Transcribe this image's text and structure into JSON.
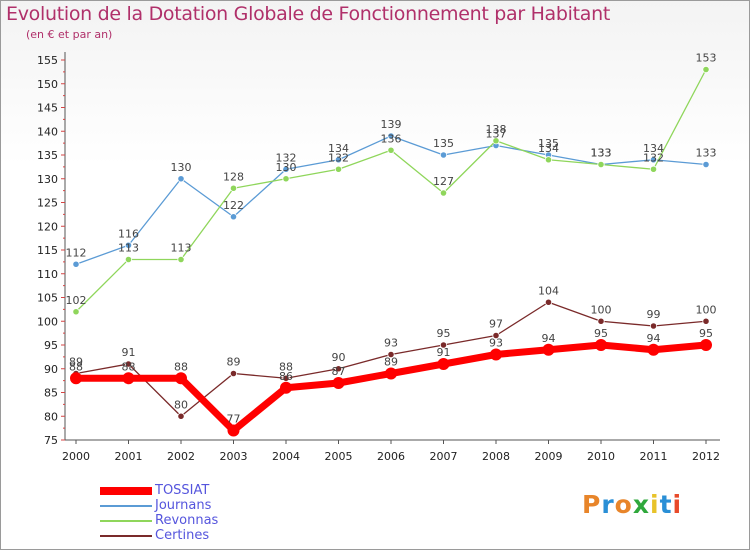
{
  "title": "Evolution de la Dotation Globale de Fonctionnement par Habitant",
  "subtitle": "(en € et par an)",
  "logo": {
    "text": "Proxiti",
    "colors": [
      "#e8852a",
      "#2a8fd6",
      "#e8852a",
      "#2fa83c",
      "#e8c32a",
      "#2a8fd6",
      "#e84a2a"
    ]
  },
  "colors": {
    "title": "#b0306a",
    "legend_text": "#5555dd",
    "axis": "#555555",
    "axis_ticks": "#d44444"
  },
  "chart_data": {
    "type": "line",
    "title": "Evolution de la Dotation Globale de Fonctionnement par Habitant",
    "subtitle": "(en € et par an)",
    "x": [
      "2000",
      "2001",
      "2002",
      "2003",
      "2004",
      "2005",
      "2006",
      "2007",
      "2008",
      "2009",
      "2010",
      "2011",
      "2012"
    ],
    "ylim": [
      75,
      155
    ],
    "yticks": [
      75,
      80,
      85,
      90,
      95,
      100,
      105,
      110,
      115,
      120,
      125,
      130,
      135,
      140,
      145,
      150,
      155
    ],
    "grid": false,
    "legend_position": "bottom-left",
    "series": [
      {
        "name": "TOSSIAT",
        "color": "#ff0000",
        "values": [
          88,
          88,
          88,
          77,
          86,
          87,
          89,
          91,
          93,
          94,
          95,
          94,
          95
        ]
      },
      {
        "name": "Journans",
        "color": "#5b9bd5",
        "values": [
          112,
          116,
          130,
          122,
          132,
          134,
          139,
          135,
          137,
          135,
          133,
          134,
          133
        ]
      },
      {
        "name": "Revonnas",
        "color": "#8fd65b",
        "values": [
          102,
          113,
          113,
          128,
          130,
          132,
          136,
          127,
          138,
          134,
          133,
          132,
          153
        ]
      },
      {
        "name": "Certines",
        "color": "#7a2a2a",
        "values": [
          89,
          91,
          80,
          89,
          88,
          90,
          93,
          95,
          97,
          104,
          100,
          99,
          100
        ]
      }
    ]
  }
}
